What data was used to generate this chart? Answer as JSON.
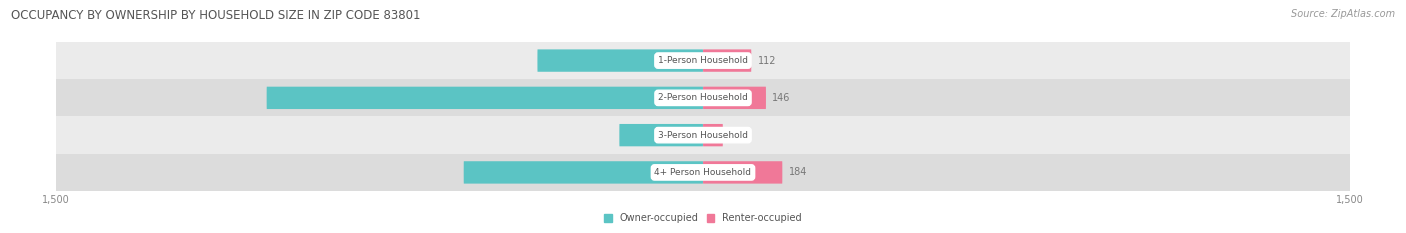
{
  "title": "OCCUPANCY BY OWNERSHIP BY HOUSEHOLD SIZE IN ZIP CODE 83801",
  "source": "Source: ZipAtlas.com",
  "categories": [
    "1-Person Household",
    "2-Person Household",
    "3-Person Household",
    "4+ Person Household"
  ],
  "owner_values": [
    384,
    1012,
    194,
    555
  ],
  "renter_values": [
    112,
    146,
    46,
    184
  ],
  "owner_color": "#5BC4C4",
  "renter_color": "#F07898",
  "xlim": 1500,
  "figsize": [
    14.06,
    2.33
  ],
  "dpi": 100,
  "title_fontsize": 8.5,
  "source_fontsize": 7,
  "bar_label_fontsize": 7,
  "category_fontsize": 6.5,
  "axis_label_fontsize": 7,
  "bar_height": 0.6,
  "row_bg_colors": [
    "#EBEBEB",
    "#DCDCDC",
    "#EBEBEB",
    "#DCDCDC"
  ],
  "label_inside_color": "#FFFFFF",
  "label_outside_color": "#777777"
}
